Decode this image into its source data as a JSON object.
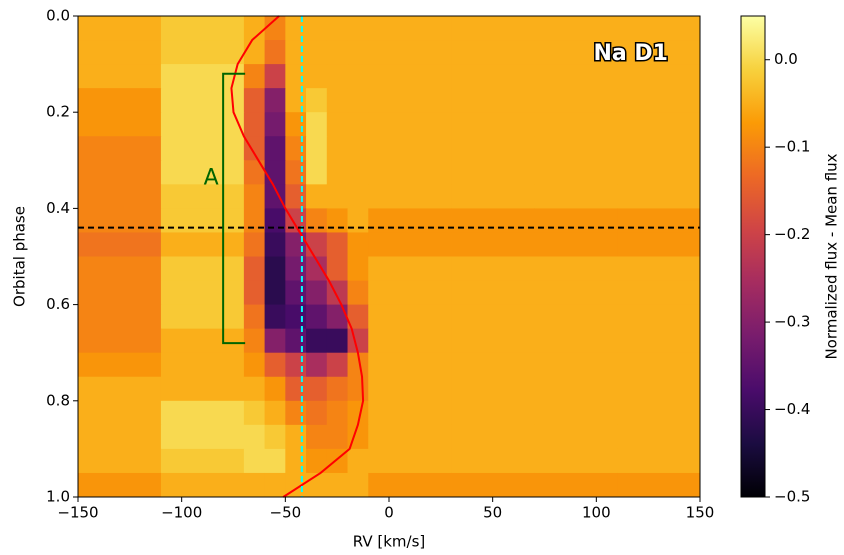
{
  "chart_data": {
    "type": "heatmap",
    "xlabel": "RV [km/s]",
    "ylabel": "Orbital phase",
    "clabel": "Normalized flux - Mean flux",
    "annotation": "Na D1",
    "xlim": [
      -150,
      150
    ],
    "xticks": [
      {
        "value": -150,
        "label": "−150"
      },
      {
        "value": -100,
        "label": "−100"
      },
      {
        "value": -50,
        "label": "−50"
      },
      0,
      50,
      100,
      150
    ],
    "ylim": [
      0,
      1
    ],
    "invert_y": true,
    "yticks": [
      {
        "value": 0,
        "label": "0.0"
      },
      {
        "value": 0.2,
        "label": "0.2"
      },
      {
        "value": 0.4,
        "label": "0.4"
      },
      {
        "value": 0.6,
        "label": "0.6"
      },
      {
        "value": 0.8,
        "label": "0.8"
      },
      {
        "value": 1,
        "label": "1.0"
      }
    ],
    "clim": [
      -0.5,
      0.05
    ],
    "cticks": [
      {
        "value": 0,
        "label": "0.0"
      },
      {
        "value": -0.1,
        "label": "−0.1"
      },
      {
        "value": -0.2,
        "label": "−0.2"
      },
      {
        "value": -0.3,
        "label": "−0.3"
      },
      {
        "value": -0.4,
        "label": "−0.4"
      },
      {
        "value": -0.5,
        "label": "−0.5"
      }
    ],
    "colormap": [
      "#000004",
      "#1b0c41",
      "#4a0c6b",
      "#781c6d",
      "#a52c60",
      "#cf4446",
      "#ed6925",
      "#fb9b06",
      "#f7d13d",
      "#fcffa4"
    ],
    "xbins": [
      -150,
      -110,
      -70,
      -60,
      -50,
      -40,
      -30,
      -20,
      -10,
      30,
      70,
      110,
      150
    ],
    "ybins": [
      0,
      0.05,
      0.1,
      0.15,
      0.2,
      0.25,
      0.3,
      0.35,
      0.4,
      0.45,
      0.5,
      0.55,
      0.6,
      0.65,
      0.7,
      0.75,
      0.8,
      0.85,
      0.9,
      0.95,
      1
    ],
    "z": [
      [
        -0.05,
        -0.02,
        -0.05,
        -0.1,
        -0.05,
        -0.05,
        -0.05,
        -0.05,
        -0.05,
        -0.05,
        -0.05,
        -0.05
      ],
      [
        -0.05,
        -0.02,
        -0.05,
        -0.12,
        -0.05,
        -0.05,
        -0.05,
        -0.05,
        -0.05,
        -0.05,
        -0.05,
        -0.05
      ],
      [
        -0.05,
        0,
        -0.1,
        -0.2,
        -0.05,
        -0.05,
        -0.05,
        -0.05,
        -0.05,
        -0.05,
        -0.05,
        -0.05
      ],
      [
        -0.08,
        0,
        -0.15,
        -0.3,
        -0.05,
        -0.02,
        -0.05,
        -0.05,
        -0.05,
        -0.05,
        -0.05,
        -0.05
      ],
      [
        -0.08,
        0,
        -0.15,
        -0.32,
        -0.08,
        0,
        -0.05,
        -0.05,
        -0.05,
        -0.05,
        -0.05,
        -0.05
      ],
      [
        -0.1,
        0,
        -0.15,
        -0.35,
        -0.1,
        0,
        -0.05,
        -0.05,
        -0.05,
        -0.05,
        -0.05,
        -0.05
      ],
      [
        -0.1,
        0,
        -0.12,
        -0.35,
        -0.12,
        0,
        -0.05,
        -0.05,
        -0.05,
        -0.05,
        -0.05,
        -0.05
      ],
      [
        -0.1,
        -0.02,
        -0.1,
        -0.35,
        -0.15,
        -0.05,
        -0.05,
        -0.05,
        -0.05,
        -0.05,
        -0.05,
        -0.05
      ],
      [
        -0.1,
        -0.02,
        -0.1,
        -0.38,
        -0.2,
        -0.1,
        -0.08,
        -0.05,
        -0.08,
        -0.08,
        -0.08,
        -0.08
      ],
      [
        -0.12,
        -0.05,
        -0.12,
        -0.4,
        -0.3,
        -0.2,
        -0.15,
        -0.08,
        -0.08,
        -0.08,
        -0.08,
        -0.08
      ],
      [
        -0.1,
        -0.02,
        -0.15,
        -0.42,
        -0.32,
        -0.25,
        -0.15,
        -0.08,
        -0.05,
        -0.05,
        -0.05,
        -0.05
      ],
      [
        -0.1,
        -0.02,
        -0.15,
        -0.42,
        -0.35,
        -0.3,
        -0.22,
        -0.1,
        -0.05,
        -0.05,
        -0.05,
        -0.05
      ],
      [
        -0.1,
        -0.02,
        -0.12,
        -0.4,
        -0.38,
        -0.35,
        -0.3,
        -0.15,
        -0.05,
        -0.05,
        -0.05,
        -0.05
      ],
      [
        -0.1,
        -0.05,
        -0.1,
        -0.3,
        -0.35,
        -0.4,
        -0.4,
        -0.2,
        -0.05,
        -0.05,
        -0.05,
        -0.05
      ],
      [
        -0.08,
        -0.05,
        -0.08,
        -0.15,
        -0.2,
        -0.25,
        -0.2,
        -0.1,
        -0.05,
        -0.05,
        -0.05,
        -0.05
      ],
      [
        -0.05,
        -0.05,
        -0.05,
        -0.08,
        -0.15,
        -0.15,
        -0.12,
        -0.1,
        -0.05,
        -0.05,
        -0.05,
        -0.05
      ],
      [
        -0.05,
        0,
        -0.02,
        -0.05,
        -0.1,
        -0.12,
        -0.1,
        -0.08,
        -0.05,
        -0.05,
        -0.05,
        -0.05
      ],
      [
        -0.05,
        0,
        0,
        -0.02,
        -0.05,
        -0.1,
        -0.1,
        -0.08,
        -0.05,
        -0.05,
        -0.05,
        -0.05
      ],
      [
        -0.05,
        -0.02,
        0,
        0,
        -0.05,
        -0.08,
        -0.08,
        -0.05,
        -0.05,
        -0.05,
        -0.05,
        -0.05
      ],
      [
        -0.08,
        -0.05,
        -0.05,
        -0.05,
        -0.05,
        -0.05,
        -0.05,
        -0.05,
        -0.08,
        -0.08,
        -0.08,
        -0.08
      ]
    ],
    "curve": {
      "color": "#ff0000",
      "phase": [
        0,
        0.05,
        0.1,
        0.15,
        0.2,
        0.25,
        0.3,
        0.35,
        0.4,
        0.45,
        0.5,
        0.55,
        0.6,
        0.65,
        0.7,
        0.75,
        0.8,
        0.85,
        0.9,
        0.95,
        1
      ],
      "rv": [
        -53,
        -66,
        -73,
        -76,
        -75,
        -70,
        -63,
        -56,
        -50,
        -43,
        -36,
        -29,
        -23,
        -18,
        -15,
        -13,
        -12.5,
        -15,
        -19,
        -33,
        -51
      ]
    },
    "vline": {
      "x": -42,
      "color": "#00ffff"
    },
    "hline": {
      "y": 0.44,
      "color": "#000000"
    },
    "bracket": {
      "label": "A",
      "x": -80,
      "y": [
        0.12,
        0.68
      ],
      "color": "#006400"
    }
  }
}
